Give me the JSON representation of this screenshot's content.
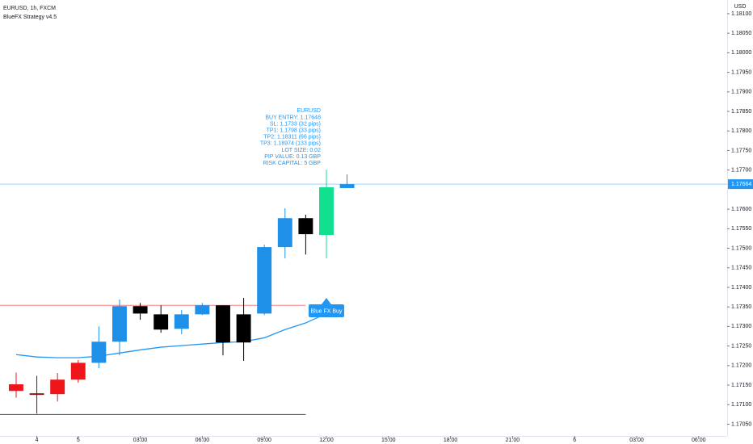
{
  "chart_data": {
    "type": "candlestick",
    "title": "EURUSD, 1h, FXCM",
    "subtitle": "BlueFX Strategy v4.5",
    "y_axis_label": "USD",
    "x": [
      0,
      1,
      2,
      3,
      4,
      5,
      6,
      7,
      8,
      9,
      10,
      11,
      12,
      13,
      14,
      15,
      16
    ],
    "open": [
      1.17152,
      1.17129,
      1.17164,
      1.17207,
      1.17207,
      1.17261,
      1.17352,
      1.17331,
      1.17294,
      1.17331,
      1.17354,
      1.17331,
      1.17333,
      1.17503,
      1.17577,
      1.17534,
      1.17654
    ],
    "high": [
      1.17182,
      1.17174,
      1.17181,
      1.17214,
      1.173,
      1.17369,
      1.1736,
      1.17354,
      1.17342,
      1.1736,
      1.17354,
      1.17373,
      1.17509,
      1.17602,
      1.17586,
      1.17701,
      1.17689
    ],
    "low": [
      1.17118,
      1.17077,
      1.17108,
      1.17156,
      1.17193,
      1.17226,
      1.17317,
      1.17284,
      1.1728,
      1.17329,
      1.17226,
      1.17212,
      1.17329,
      1.17474,
      1.17484,
      1.17474,
      1.17654
    ],
    "close": [
      1.17135,
      1.17125,
      1.17127,
      1.17164,
      1.17261,
      1.17352,
      1.17333,
      1.17292,
      1.17331,
      1.17354,
      1.17259,
      1.17259,
      1.17503,
      1.17577,
      1.17536,
      1.17656,
      1.17664
    ],
    "colors": [
      "#f0151b",
      "#880e0e",
      "#f0151b",
      "#f0151b",
      "#1e90e8",
      "#1e90e8",
      "#000000",
      "#000000",
      "#1e90e8",
      "#1e90e8",
      "#000000",
      "#000000",
      "#1e90e8",
      "#1e90e8",
      "#000000",
      "#10e090",
      "#1e90e8"
    ],
    "series": [
      {
        "type": "line",
        "color": "#2196f3",
        "values": [
          1.17228,
          1.17222,
          1.1722,
          1.1722,
          1.17224,
          1.17232,
          1.1724,
          1.17247,
          1.17251,
          1.17255,
          1.17259,
          1.17261,
          1.17271,
          1.17292,
          1.17309,
          1.17333,
          null
        ]
      }
    ],
    "hlines": [
      {
        "value": 1.17354,
        "color": "#f08080",
        "to": 14
      },
      {
        "value": 1.17075,
        "color": "#555555",
        "to": 14
      }
    ],
    "last_price": {
      "value": 1.17664,
      "label": "1.17664",
      "color": "#2196f3"
    },
    "signal": {
      "text": "Blue FX Buy",
      "x": 15,
      "value": 1.17373,
      "color": "#2196f3"
    },
    "info": {
      "x": 15,
      "lines": [
        "EURUSD",
        "BUY ENTRY: 1.17648",
        "SL: 1.1733 (32 pips)",
        "TP1: 1.1798 (33 pips)",
        "TP2: 1.18311 (66 pips)",
        "TP3: 1.18974 (133 pips)",
        "LOT SIZE: 0.02",
        "PIP VALUE: 0.13 GBP",
        "RISK CAPITAL: 5 GBP"
      ]
    },
    "xlim": [
      -0.78,
      34.375
    ],
    "xticks": [
      {
        "value": 1,
        "label": "4"
      },
      {
        "value": 3,
        "label": "5"
      },
      {
        "value": 6,
        "label": "03:00"
      },
      {
        "value": 9,
        "label": "06:00"
      },
      {
        "value": 12,
        "label": "09:00"
      },
      {
        "value": 15,
        "label": "12:00"
      },
      {
        "value": 18,
        "label": "15:00"
      },
      {
        "value": 21,
        "label": "18:00"
      },
      {
        "value": 24,
        "label": "21:00"
      },
      {
        "value": 27,
        "label": "6"
      },
      {
        "value": 30,
        "label": "03:00"
      },
      {
        "value": 33,
        "label": "06:00"
      }
    ],
    "ylim": [
      1.1702,
      1.18135
    ],
    "yticks": [
      {
        "value": 1.1705,
        "label": "1.17050"
      },
      {
        "value": 1.171,
        "label": "1.17100"
      },
      {
        "value": 1.1715,
        "label": "1.17150"
      },
      {
        "value": 1.172,
        "label": "1.17200"
      },
      {
        "value": 1.1725,
        "label": "1.17250"
      },
      {
        "value": 1.173,
        "label": "1.17300"
      },
      {
        "value": 1.1735,
        "label": "1.17350"
      },
      {
        "value": 1.174,
        "label": "1.17400"
      },
      {
        "value": 1.1745,
        "label": "1.17450"
      },
      {
        "value": 1.175,
        "label": "1.17500"
      },
      {
        "value": 1.1755,
        "label": "1.17550"
      },
      {
        "value": 1.176,
        "label": "1.17600"
      },
      {
        "value": 1.177,
        "label": "1.17700"
      },
      {
        "value": 1.1775,
        "label": "1.17750"
      },
      {
        "value": 1.178,
        "label": "1.17800"
      },
      {
        "value": 1.1785,
        "label": "1.17850"
      },
      {
        "value": 1.179,
        "label": "1.17900"
      },
      {
        "value": 1.1795,
        "label": "1.17950"
      },
      {
        "value": 1.18,
        "label": "1.18000"
      },
      {
        "value": 1.1805,
        "label": "1.18050"
      },
      {
        "value": 1.181,
        "label": "1.18100"
      }
    ]
  }
}
